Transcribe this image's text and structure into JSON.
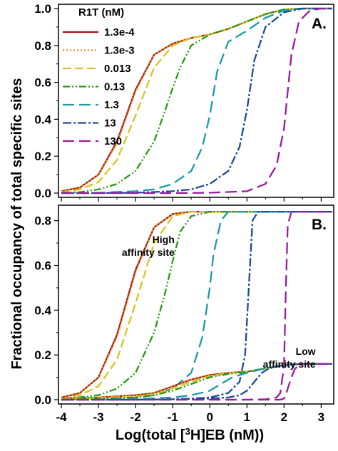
{
  "chart_data": {
    "type": "line",
    "xlabel_prefix": "Log(total [",
    "xlabel_sup": "3",
    "xlabel_suffix": "H]EB (nM))",
    "ylabel": "Fractional occupancy of total specific sites",
    "xlim": [
      -4,
      3.3
    ],
    "x_ticks": [
      "-4",
      "-3",
      "-2",
      "-1",
      "0",
      "1",
      "2",
      "3"
    ],
    "grid": false,
    "legend": {
      "title": "R1T (nM)",
      "position": "top-left",
      "panel": "A."
    },
    "series_styles": [
      {
        "name": "1.3e-4",
        "color": "#a01818",
        "dash": ""
      },
      {
        "name": "1.3e-3",
        "color": "#f08c10",
        "dash": "2,3"
      },
      {
        "name": "0.013",
        "color": "#d8c420",
        "dash": "12,5"
      },
      {
        "name": "0.13",
        "color": "#2a9a10",
        "dash": "10,3,2,3,2,3"
      },
      {
        "name": "1.3",
        "color": "#1a9aaa",
        "dash": "16,7"
      },
      {
        "name": "13",
        "color": "#1a4a9a",
        "dash": "12,3,3,3"
      },
      {
        "name": "130",
        "color": "#9a1aa0",
        "dash": "16,7"
      }
    ],
    "panels": [
      {
        "label": "A.",
        "ylim": [
          0,
          1.0
        ],
        "y_ticks": [
          "0.0",
          "0.2",
          "0.4",
          "0.6",
          "0.8",
          "1.0"
        ],
        "annotations": [],
        "series": [
          {
            "name": "1.3e-4",
            "x": [
              -4,
              -3.5,
              -3,
              -2.5,
              -2,
              -1.5,
              -1,
              -0.5,
              0,
              0.5,
              1,
              1.5,
              2,
              2.5,
              3,
              3.3
            ],
            "values": [
              0.01,
              0.03,
              0.1,
              0.28,
              0.56,
              0.75,
              0.81,
              0.84,
              0.86,
              0.89,
              0.93,
              0.97,
              0.995,
              1.0,
              1.0,
              1.0
            ]
          },
          {
            "name": "1.3e-3",
            "x": [
              -4,
              -3.5,
              -3,
              -2.5,
              -2,
              -1.5,
              -1,
              -0.5,
              0,
              0.5,
              1,
              1.5,
              2,
              2.5,
              3,
              3.3
            ],
            "values": [
              0.01,
              0.03,
              0.1,
              0.27,
              0.55,
              0.75,
              0.81,
              0.84,
              0.86,
              0.89,
              0.93,
              0.97,
              0.995,
              1.0,
              1.0,
              1.0
            ]
          },
          {
            "name": "0.013",
            "x": [
              -4,
              -3.5,
              -3,
              -2.5,
              -2,
              -1.5,
              -1,
              -0.5,
              0,
              0.5,
              1,
              1.5,
              2,
              2.5,
              3,
              3.3
            ],
            "values": [
              0.005,
              0.02,
              0.06,
              0.18,
              0.42,
              0.68,
              0.8,
              0.84,
              0.86,
              0.89,
              0.93,
              0.97,
              0.995,
              1.0,
              1.0,
              1.0
            ]
          },
          {
            "name": "0.13",
            "x": [
              -4,
              -3.5,
              -3,
              -2.5,
              -2,
              -1.5,
              -1.2,
              -1,
              -0.8,
              -0.5,
              0,
              0.5,
              1,
              1.5,
              2,
              2.5,
              3,
              3.3
            ],
            "values": [
              0.002,
              0.005,
              0.02,
              0.05,
              0.12,
              0.28,
              0.45,
              0.57,
              0.68,
              0.8,
              0.86,
              0.89,
              0.93,
              0.97,
              0.995,
              1.0,
              1.0,
              1.0
            ]
          },
          {
            "name": "1.3",
            "x": [
              -4,
              -3,
              -2,
              -1.5,
              -1,
              -0.5,
              -0.2,
              0,
              0.2,
              0.5,
              1,
              1.5,
              2,
              2.5,
              3,
              3.3
            ],
            "values": [
              0.0,
              0.002,
              0.01,
              0.02,
              0.05,
              0.12,
              0.25,
              0.42,
              0.66,
              0.82,
              0.88,
              0.95,
              0.99,
              1.0,
              1.0,
              1.0
            ]
          },
          {
            "name": "13",
            "x": [
              -4,
              -3,
              -2,
              -1,
              -0.5,
              0,
              0.5,
              0.8,
              1,
              1.2,
              1.5,
              2,
              2.5,
              3,
              3.3
            ],
            "values": [
              0.0,
              0.0,
              0.002,
              0.01,
              0.02,
              0.05,
              0.12,
              0.25,
              0.45,
              0.72,
              0.9,
              0.98,
              1.0,
              1.0,
              1.0
            ]
          },
          {
            "name": "130",
            "x": [
              -4,
              -2,
              -1,
              0,
              1,
              1.5,
              1.8,
              2,
              2.1,
              2.2,
              2.4,
              2.7,
              3,
              3.3
            ],
            "values": [
              0.0,
              0.0,
              0.0,
              0.002,
              0.01,
              0.05,
              0.15,
              0.35,
              0.55,
              0.75,
              0.93,
              0.99,
              1.0,
              1.0
            ]
          }
        ]
      },
      {
        "label": "B.",
        "ylim": [
          0,
          0.85
        ],
        "y_ticks": [
          "0.0",
          "0.2",
          "0.4",
          "0.6",
          "0.8"
        ],
        "annotations": [
          {
            "lines": [
              "High",
              "affinity site"
            ],
            "x": -0.95,
            "y": 0.7
          },
          {
            "lines": [
              "Low",
              "affinity site"
            ],
            "x": 2.85,
            "y": 0.2
          }
        ],
        "series": [
          {
            "name": "1.3e-4",
            "x": [
              -4,
              -3.5,
              -3,
              -2.5,
              -2,
              -1.5,
              -1,
              -0.5,
              0,
              1,
              2,
              3,
              3.3
            ],
            "values": [
              0.01,
              0.03,
              0.1,
              0.29,
              0.58,
              0.77,
              0.83,
              0.84,
              0.84,
              0.84,
              0.84,
              0.84,
              0.84
            ]
          },
          {
            "name": "1.3e-3",
            "x": [
              -4,
              -3.5,
              -3,
              -2.5,
              -2,
              -1.5,
              -1,
              -0.5,
              0,
              1,
              2,
              3,
              3.3
            ],
            "values": [
              0.01,
              0.03,
              0.1,
              0.28,
              0.57,
              0.77,
              0.83,
              0.84,
              0.84,
              0.84,
              0.84,
              0.84,
              0.84
            ]
          },
          {
            "name": "0.013",
            "x": [
              -4,
              -3.5,
              -3,
              -2.5,
              -2,
              -1.5,
              -1,
              -0.5,
              0,
              1,
              2,
              3,
              3.3
            ],
            "values": [
              0.005,
              0.02,
              0.06,
              0.18,
              0.43,
              0.7,
              0.82,
              0.84,
              0.84,
              0.84,
              0.84,
              0.84,
              0.84
            ]
          },
          {
            "name": "0.13",
            "x": [
              -4,
              -3,
              -2.5,
              -2,
              -1.5,
              -1.2,
              -1,
              -0.8,
              -0.5,
              0,
              1,
              2,
              3,
              3.3
            ],
            "values": [
              0.002,
              0.02,
              0.05,
              0.12,
              0.3,
              0.48,
              0.62,
              0.75,
              0.82,
              0.84,
              0.84,
              0.84,
              0.84,
              0.84
            ]
          },
          {
            "name": "1.3",
            "x": [
              -4,
              -3,
              -2,
              -1.5,
              -1,
              -0.5,
              -0.2,
              0,
              0.1,
              0.3,
              0.5,
              1,
              2,
              3,
              3.3
            ],
            "values": [
              0.0,
              0.002,
              0.01,
              0.02,
              0.05,
              0.12,
              0.28,
              0.5,
              0.65,
              0.8,
              0.84,
              0.84,
              0.84,
              0.84,
              0.84
            ]
          },
          {
            "name": "13",
            "x": [
              -4,
              -3,
              -2,
              -1,
              -0.5,
              0,
              0.5,
              0.8,
              0.95,
              1.05,
              1.15,
              1.3,
              2,
              3,
              3.3
            ],
            "values": [
              0.0,
              0.0,
              0.0,
              0.002,
              0.005,
              0.01,
              0.03,
              0.08,
              0.2,
              0.5,
              0.8,
              0.84,
              0.84,
              0.84,
              0.84
            ]
          },
          {
            "name": "130",
            "x": [
              -4,
              -2,
              -1,
              0,
              1,
              1.5,
              1.8,
              1.9,
              2.0,
              2.05,
              2.1,
              2.2,
              3,
              3.3
            ],
            "values": [
              0.0,
              0.0,
              0.0,
              0.0,
              0.0,
              0.002,
              0.01,
              0.03,
              0.15,
              0.5,
              0.78,
              0.84,
              0.84,
              0.84
            ]
          },
          {
            "name": "1.3e-4",
            "x": [
              -4,
              -3,
              -2,
              -1.5,
              -1,
              -0.5,
              0,
              0.5,
              1,
              1.5,
              2,
              2.5,
              3,
              3.3
            ],
            "values": [
              0.005,
              0.01,
              0.02,
              0.03,
              0.06,
              0.09,
              0.11,
              0.12,
              0.125,
              0.14,
              0.155,
              0.16,
              0.16,
              0.16
            ]
          },
          {
            "name": "1.3e-3",
            "x": [
              -4,
              -3,
              -2,
              -1.5,
              -1,
              -0.5,
              0,
              0.5,
              1,
              1.5,
              2,
              2.5,
              3,
              3.3
            ],
            "values": [
              0.005,
              0.01,
              0.02,
              0.03,
              0.06,
              0.09,
              0.11,
              0.12,
              0.125,
              0.14,
              0.155,
              0.16,
              0.16,
              0.16
            ]
          },
          {
            "name": "0.013",
            "x": [
              -4,
              -3,
              -2,
              -1.5,
              -1,
              -0.5,
              0,
              0.5,
              1,
              1.5,
              2,
              2.5,
              3,
              3.3
            ],
            "values": [
              0.003,
              0.008,
              0.015,
              0.025,
              0.05,
              0.08,
              0.105,
              0.118,
              0.125,
              0.14,
              0.155,
              0.16,
              0.16,
              0.16
            ]
          },
          {
            "name": "0.13",
            "x": [
              -4,
              -3,
              -2,
              -1.5,
              -1,
              -0.5,
              0,
              0.5,
              1,
              1.5,
              2,
              2.5,
              3,
              3.3
            ],
            "values": [
              0.001,
              0.004,
              0.01,
              0.02,
              0.04,
              0.07,
              0.1,
              0.115,
              0.125,
              0.14,
              0.155,
              0.16,
              0.16,
              0.16
            ]
          },
          {
            "name": "1.3",
            "x": [
              -4,
              -2,
              -1,
              -0.5,
              0,
              0.3,
              0.6,
              1,
              1.5,
              2,
              2.5,
              3,
              3.3
            ],
            "values": [
              0.0,
              0.003,
              0.01,
              0.02,
              0.04,
              0.07,
              0.1,
              0.12,
              0.14,
              0.155,
              0.16,
              0.16,
              0.16
            ]
          },
          {
            "name": "13",
            "x": [
              -4,
              -2,
              -1,
              0,
              0.5,
              0.8,
              1,
              1.2,
              1.4,
              1.6,
              2,
              2.5,
              3,
              3.3
            ],
            "values": [
              0.0,
              0.0,
              0.002,
              0.005,
              0.01,
              0.02,
              0.04,
              0.08,
              0.12,
              0.14,
              0.155,
              0.16,
              0.16,
              0.16
            ]
          },
          {
            "name": "130",
            "x": [
              -4,
              -1,
              0,
              1,
              1.5,
              1.9,
              2.0,
              2.05,
              2.1,
              2.2,
              2.3,
              2.5,
              3,
              3.3
            ],
            "values": [
              0.0,
              0.0,
              0.0,
              0.0,
              0.0,
              0.0,
              0.005,
              0.02,
              0.05,
              0.1,
              0.14,
              0.16,
              0.16,
              0.16
            ]
          }
        ]
      }
    ]
  }
}
